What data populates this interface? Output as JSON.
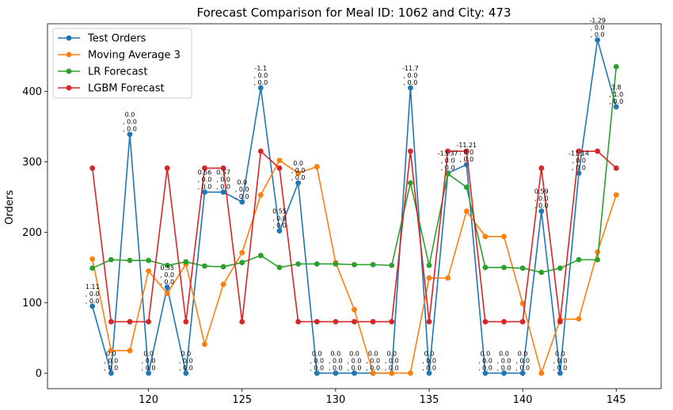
{
  "chart_data": {
    "type": "line",
    "title": "Forecast Comparison for Meal ID: 1062 and City: 473",
    "xlabel": "",
    "ylabel": "Orders",
    "x": [
      117,
      118,
      119,
      120,
      121,
      122,
      123,
      124,
      125,
      126,
      127,
      128,
      129,
      130,
      131,
      132,
      133,
      134,
      135,
      136,
      137,
      138,
      139,
      140,
      141,
      142,
      143,
      144,
      145
    ],
    "xlim": [
      114.6,
      147.4
    ],
    "ylim": [
      -22,
      496
    ],
    "xticks": [
      120,
      125,
      130,
      135,
      140,
      145
    ],
    "yticks": [
      0,
      100,
      200,
      300,
      400
    ],
    "grid": false,
    "legend_position": "top-left",
    "series": [
      {
        "name": "Test Orders",
        "color": "#1f77b4",
        "values": [
          95,
          0,
          339,
          0,
          122,
          0,
          257,
          257,
          243,
          405,
          202,
          270,
          0,
          0,
          0,
          0,
          0,
          405,
          0,
          284,
          296,
          0,
          0,
          0,
          230,
          0,
          284,
          473,
          378
        ]
      },
      {
        "name": "Moving Average 3",
        "color": "#ff7f0e",
        "values": [
          162,
          32,
          32,
          145,
          113,
          155,
          41,
          126,
          171,
          253,
          302,
          284,
          293,
          157,
          90,
          0,
          0,
          0,
          135,
          135,
          230,
          194,
          194,
          99,
          0,
          76,
          77,
          172,
          253
        ]
      },
      {
        "name": "LR Forecast",
        "color": "#2ca02c",
        "values": [
          149,
          161,
          160,
          160,
          153,
          158,
          152,
          151,
          157,
          167,
          150,
          155,
          155,
          155,
          154,
          154,
          153,
          270,
          153,
          283,
          264,
          150,
          150,
          149,
          143,
          149,
          161,
          161,
          435
        ]
      },
      {
        "name": "LGBM Forecast",
        "color": "#d62728",
        "values": [
          291,
          73,
          73,
          73,
          291,
          73,
          291,
          291,
          73,
          315,
          291,
          73,
          73,
          73,
          73,
          73,
          73,
          315,
          73,
          315,
          315,
          73,
          73,
          73,
          291,
          73,
          315,
          315,
          291
        ]
      }
    ],
    "annotations": [
      {
        "x": 117,
        "y": 95,
        "lines": [
          "1.11",
          ", 0.0",
          ", 0.0"
        ]
      },
      {
        "x": 118,
        "y": 0,
        "lines": [
          "0.0",
          ", 0.0",
          ", 0.0"
        ]
      },
      {
        "x": 119,
        "y": 339,
        "lines": [
          "0.0",
          ", 0.0",
          ", 0.0"
        ]
      },
      {
        "x": 120,
        "y": 0,
        "lines": [
          "0.0",
          ", 0.0",
          ", 0.0"
        ]
      },
      {
        "x": 121,
        "y": 122,
        "lines": [
          "0.55",
          ", 0.0",
          ", 0.0"
        ]
      },
      {
        "x": 122,
        "y": 0,
        "lines": [
          "0.0",
          ", 0.0",
          ", 0.0"
        ]
      },
      {
        "x": 123,
        "y": 257,
        "lines": [
          "0.56",
          ", 0.0",
          ", 0.0"
        ]
      },
      {
        "x": 124,
        "y": 257,
        "lines": [
          "0.57",
          ", 0.0",
          ", 0.0"
        ]
      },
      {
        "x": 125,
        "y": 243,
        "lines": [
          "0.0",
          ", 0.0",
          ", 0.0"
        ]
      },
      {
        "x": 126,
        "y": 405,
        "lines": [
          "-1.1",
          ", 0.0",
          ", 0.0"
        ]
      },
      {
        "x": 127,
        "y": 202,
        "lines": [
          "0.55",
          ", 0.0",
          ", 0.0"
        ]
      },
      {
        "x": 128,
        "y": 270,
        "lines": [
          "0.0",
          ", 0.0",
          ", 0.0"
        ]
      },
      {
        "x": 129,
        "y": 0,
        "lines": [
          "0.0",
          ", 0.0",
          ", 0.0"
        ]
      },
      {
        "x": 130,
        "y": 0,
        "lines": [
          "0.0",
          ", 0.0",
          ", 0.0"
        ]
      },
      {
        "x": 131,
        "y": 0,
        "lines": [
          "0.0",
          ", 0.0",
          ", 0.0"
        ]
      },
      {
        "x": 132,
        "y": 0,
        "lines": [
          "0.0",
          ", 0.0",
          ", 0.0"
        ]
      },
      {
        "x": 133,
        "y": 0,
        "lines": [
          "0.0",
          ", 0.0",
          ", 0.0"
        ]
      },
      {
        "x": 134,
        "y": 405,
        "lines": [
          "-11.7",
          ", 0.0",
          ", 0.0"
        ]
      },
      {
        "x": 135,
        "y": 0,
        "lines": [
          "0.0",
          ", 0.0",
          ", 0.0"
        ]
      },
      {
        "x": 136,
        "y": 284,
        "lines": [
          "-13.37",
          ", 0.0",
          ", 0.0"
        ]
      },
      {
        "x": 137,
        "y": 296,
        "lines": [
          "-11.21",
          ", 0.0",
          ", 0.0"
        ]
      },
      {
        "x": 138,
        "y": 0,
        "lines": [
          "0.0",
          ", 0.0",
          ", 0.0"
        ]
      },
      {
        "x": 139,
        "y": 0,
        "lines": [
          "0.0",
          ", 0.0",
          ", 0.0"
        ]
      },
      {
        "x": 140,
        "y": 0,
        "lines": [
          "0.0",
          ", 0.0",
          ", 0.0"
        ]
      },
      {
        "x": 141,
        "y": 230,
        "lines": [
          "0.59",
          ", 0.0",
          ", 0.0"
        ]
      },
      {
        "x": 142,
        "y": 0,
        "lines": [
          "0.0",
          ", 0.0",
          ", 0.0"
        ]
      },
      {
        "x": 143,
        "y": 284,
        "lines": [
          "-11.14",
          ", 0.0",
          ", 0.0"
        ]
      },
      {
        "x": 144,
        "y": 473,
        "lines": [
          "-1.29",
          ", 0.0",
          ", 0.0"
        ]
      },
      {
        "x": 145,
        "y": 378,
        "lines": [
          "3.8",
          ", 1.0",
          ", 0.0"
        ]
      }
    ]
  }
}
